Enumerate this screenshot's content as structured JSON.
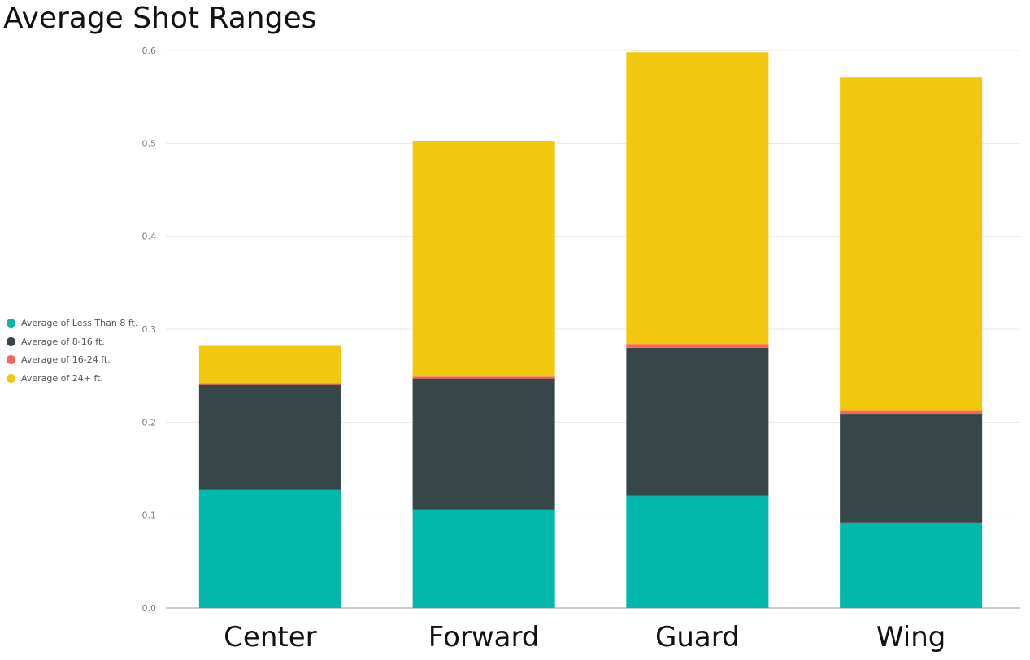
{
  "chart_data": {
    "type": "bar",
    "stacked": true,
    "title": "Average Shot Ranges",
    "categories": [
      "Center",
      "Forward",
      "Guard",
      "Wing"
    ],
    "series": [
      {
        "name": "Average of Less Than 8 ft.",
        "color": "#01B8AA",
        "values": [
          0.127,
          0.106,
          0.121,
          0.092
        ]
      },
      {
        "name": "Average of 8-16 ft.",
        "color": "#374649",
        "values": [
          0.113,
          0.141,
          0.159,
          0.117
        ]
      },
      {
        "name": "Average of 16-24 ft.",
        "color": "#FD625E",
        "values": [
          0.002,
          0.002,
          0.004,
          0.003
        ]
      },
      {
        "name": "Average of 24+ ft.",
        "color": "#F2C80F",
        "values": [
          0.04,
          0.253,
          0.314,
          0.359
        ]
      }
    ],
    "yticks": [
      "0.0",
      "0.1",
      "0.2",
      "0.3",
      "0.4",
      "0.5",
      "0.6"
    ],
    "ylim": [
      0,
      0.6
    ],
    "xlabel": "",
    "ylabel": "",
    "grid": true,
    "legend_position": "left"
  }
}
